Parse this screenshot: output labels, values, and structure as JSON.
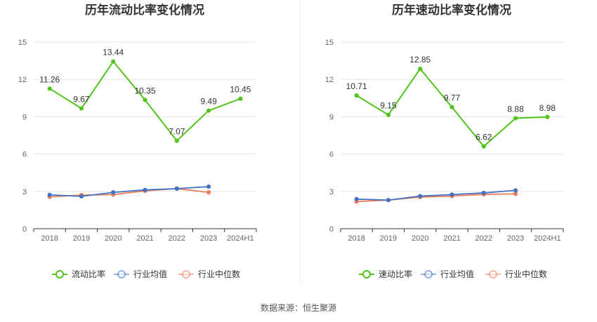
{
  "source_note": "数据来源：恒生聚源",
  "colors": {
    "primary": "#52c41a",
    "industry_avg": "#4472c4",
    "industry_median": "#ed7d5a",
    "grid": "#e6e6e6",
    "axis": "#333333",
    "tick_text": "#666666",
    "title": "#333333"
  },
  "chart_data": [
    {
      "type": "line",
      "title": "历年流动比率变化情况",
      "xlabel": "",
      "ylabel": "",
      "categories": [
        "2018",
        "2019",
        "2020",
        "2021",
        "2022",
        "2023",
        "2024H1"
      ],
      "y_ticks": [
        "0",
        "3",
        "6",
        "9",
        "12",
        "15"
      ],
      "ylim": [
        0,
        15
      ],
      "legend_position": "bottom",
      "series": [
        {
          "name": "流动比率",
          "role": "primary",
          "values": [
            11.26,
            9.67,
            13.44,
            10.35,
            7.07,
            9.49,
            10.45
          ],
          "labels": [
            "11.26",
            "9.67",
            "13.44",
            "10.35",
            "7.07",
            "9.49",
            "10.45"
          ]
        },
        {
          "name": "行业均值",
          "role": "industry_avg",
          "values": [
            2.72,
            2.6,
            2.92,
            3.12,
            3.22,
            3.38,
            null
          ]
        },
        {
          "name": "行业中位数",
          "role": "industry_median",
          "values": [
            2.56,
            2.7,
            2.74,
            3.04,
            3.22,
            2.92,
            null
          ]
        }
      ]
    },
    {
      "type": "line",
      "title": "历年速动比率变化情况",
      "xlabel": "",
      "ylabel": "",
      "categories": [
        "2018",
        "2019",
        "2020",
        "2021",
        "2022",
        "2023",
        "2024H1"
      ],
      "y_ticks": [
        "0",
        "3",
        "6",
        "9",
        "12",
        "15"
      ],
      "ylim": [
        0,
        15
      ],
      "legend_position": "bottom",
      "series": [
        {
          "name": "速动比率",
          "role": "primary",
          "values": [
            10.71,
            9.15,
            12.85,
            9.77,
            6.62,
            8.88,
            8.98
          ],
          "labels": [
            "10.71",
            "9.15",
            "12.85",
            "9.77",
            "6.62",
            "8.88",
            "8.98"
          ]
        },
        {
          "name": "行业均值",
          "role": "industry_avg",
          "values": [
            2.38,
            2.3,
            2.62,
            2.74,
            2.88,
            3.08,
            null
          ]
        },
        {
          "name": "行业中位数",
          "role": "industry_median",
          "values": [
            2.18,
            2.3,
            2.54,
            2.62,
            2.76,
            2.8,
            null
          ]
        }
      ]
    }
  ]
}
